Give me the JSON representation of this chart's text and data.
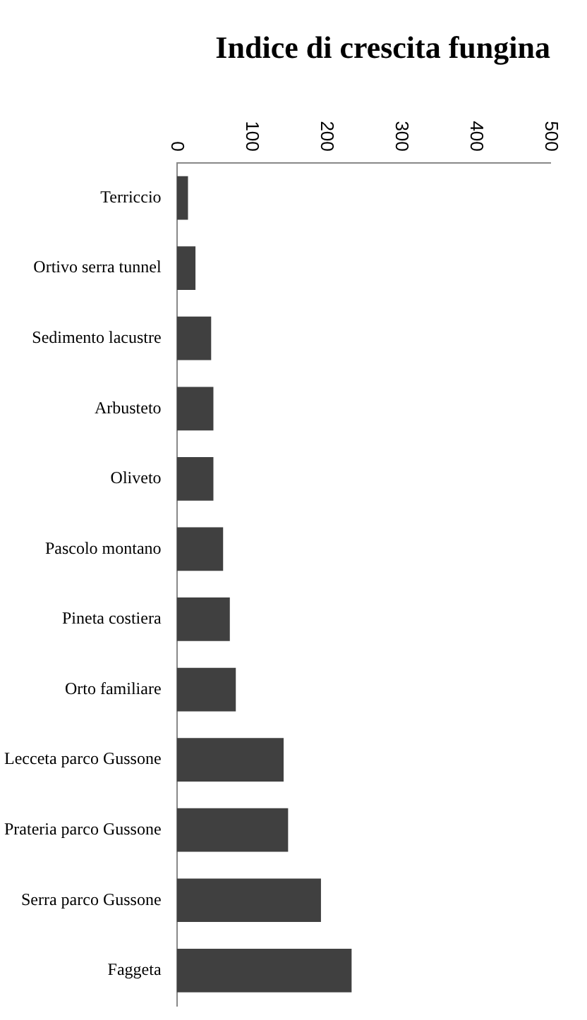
{
  "chart_data": {
    "type": "bar",
    "orientation": "horizontal",
    "title": "Indice di crescita fungina",
    "categories": [
      "Terriccio",
      "Ortivo serra tunnel",
      "Sedimento lacustre",
      "Arbusteto",
      "Oliveto",
      "Pascolo montano",
      "Pineta costiera",
      "Orto familiare",
      "Lecceta parco Gussone",
      "Prateria parco Gussone",
      "Serra parco Gussone",
      "Faggeta"
    ],
    "values": [
      15,
      25,
      46,
      49,
      49,
      62,
      71,
      79,
      143,
      149,
      193,
      234
    ],
    "color": "#404040",
    "xlim": [
      0,
      500
    ],
    "xticks": [
      0,
      100,
      200,
      300,
      400,
      500
    ],
    "grid": false,
    "legend": false
  }
}
